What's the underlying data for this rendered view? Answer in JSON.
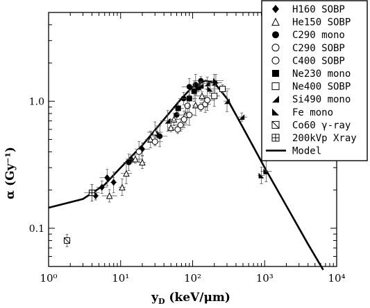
{
  "chart_data": {
    "type": "scatter",
    "title": "",
    "xlabel_main": "y",
    "xlabel_sub": "D",
    "xlabel_rest": " (keV/μm)",
    "ylabel": "α (Gy⁻¹)",
    "xscale": "log",
    "yscale": "log",
    "xlim": [
      1,
      10000
    ],
    "ylim": [
      0.05,
      5
    ],
    "x_tick_labels": [
      "10⁰",
      "10¹",
      "10²",
      "10³",
      "10⁴"
    ],
    "x_ticks": [
      1,
      10,
      100,
      1000,
      10000
    ],
    "y_tick_labels": [
      "0.1",
      "1.0"
    ],
    "y_ticks": [
      0.1,
      1.0
    ],
    "legend_position": "top-right",
    "series": [
      {
        "name": "H160 SOBP",
        "marker": "diamond-filled",
        "points": [
          [
            4.5,
            0.18
          ],
          [
            5.5,
            0.21
          ],
          [
            6.5,
            0.25
          ],
          [
            8,
            0.23
          ],
          [
            14,
            0.35
          ],
          [
            20,
            0.42
          ],
          [
            32,
            0.55
          ]
        ]
      },
      {
        "name": "He150 SOBP",
        "marker": "triangle-open",
        "points": [
          [
            7,
            0.18
          ],
          [
            10.5,
            0.21
          ],
          [
            12,
            0.27
          ],
          [
            16,
            0.35
          ],
          [
            20,
            0.33
          ],
          [
            26,
            0.5
          ],
          [
            30,
            0.57
          ],
          [
            50,
            0.62
          ],
          [
            55,
            0.72
          ],
          [
            80,
            0.78
          ],
          [
            110,
            0.93
          ],
          [
            135,
            1.1
          ]
        ]
      },
      {
        "name": "C290 mono",
        "marker": "circle-filled",
        "points": [
          [
            13,
            0.33
          ],
          [
            35,
            0.53
          ],
          [
            60,
            0.78
          ],
          [
            75,
            1.05
          ],
          [
            90,
            1.3
          ],
          [
            110,
            1.35
          ],
          [
            130,
            1.45
          ]
        ]
      },
      {
        "name": "C290 SOBP",
        "marker": "circle-open",
        "points": [
          [
            18,
            0.4
          ],
          [
            62,
            0.6
          ],
          [
            68,
            0.65
          ],
          [
            76,
            0.72
          ],
          [
            90,
            0.78
          ],
          [
            130,
            0.9
          ]
        ]
      },
      {
        "name": "C400 SOBP",
        "marker": "circle-open",
        "points": [
          [
            30,
            0.48
          ],
          [
            85,
            0.92
          ],
          [
            150,
            0.95
          ],
          [
            160,
            1.02
          ]
        ]
      },
      {
        "name": "Ne230 mono",
        "marker": "square-filled",
        "points": [
          [
            63,
            0.88
          ],
          [
            90,
            1.05
          ],
          [
            105,
            1.2
          ],
          [
            120,
            1.28
          ]
        ]
      },
      {
        "name": "Ne400 SOBP",
        "marker": "square-open",
        "points": [
          [
            4,
            0.19
          ],
          [
            200,
            1.1
          ],
          [
            260,
            1.25
          ]
        ]
      },
      {
        "name": "Si490 mono",
        "marker": "right-triangle-filled",
        "points": [
          [
            45,
            0.7
          ],
          [
            130,
            1.32
          ],
          [
            160,
            1.38
          ],
          [
            200,
            1.4
          ],
          [
            300,
            1.0
          ],
          [
            480,
            0.75
          ]
        ]
      },
      {
        "name": "Fe mono",
        "marker": "left-triangle-filled",
        "points": [
          [
            175,
            1.25
          ],
          [
            210,
            1.45
          ],
          [
            900,
            0.26
          ],
          [
            1050,
            0.28
          ]
        ]
      },
      {
        "name": "Co60 γ-ray",
        "marker": "square-hatched",
        "points": [
          [
            1.8,
            0.08
          ]
        ]
      },
      {
        "name": "200kVp Xray",
        "marker": "square-crossed",
        "points": [
          [
            4,
            0.19
          ]
        ]
      },
      {
        "name": "Model",
        "marker": "line",
        "points": [
          [
            1,
            0.145
          ],
          [
            3,
            0.17
          ],
          [
            6,
            0.22
          ],
          [
            10,
            0.3
          ],
          [
            20,
            0.45
          ],
          [
            40,
            0.72
          ],
          [
            70,
            1.05
          ],
          [
            100,
            1.3
          ],
          [
            150,
            1.45
          ],
          [
            200,
            1.4
          ],
          [
            300,
            1.05
          ],
          [
            500,
            0.62
          ],
          [
            1000,
            0.3
          ],
          [
            2000,
            0.15
          ],
          [
            4000,
            0.075
          ],
          [
            6500,
            0.047
          ]
        ]
      }
    ]
  }
}
